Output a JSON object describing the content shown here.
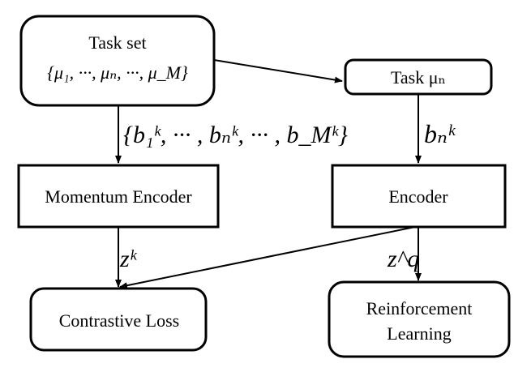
{
  "nodes": {
    "task_set": {
      "title": "Task set",
      "subtitle": "{μ₁, ···, μₙ, ···, μ_M}"
    },
    "task_mu_n": {
      "label": "Task μₙ"
    },
    "momentum_encoder": {
      "label": "Momentum Encoder"
    },
    "encoder": {
      "label": "Encoder"
    },
    "contrastive_loss": {
      "label": "Contrastive Loss"
    },
    "reinforcement_learning": {
      "line1": "Reinforcement",
      "line2": "Learning"
    }
  },
  "edge_labels": {
    "b_set": "{b₁ᵏ, ··· , bₙᵏ, ··· , b_Mᵏ}",
    "b_n_k": "bₙᵏ",
    "z_k": "zᵏ",
    "z_q": "z^q"
  }
}
